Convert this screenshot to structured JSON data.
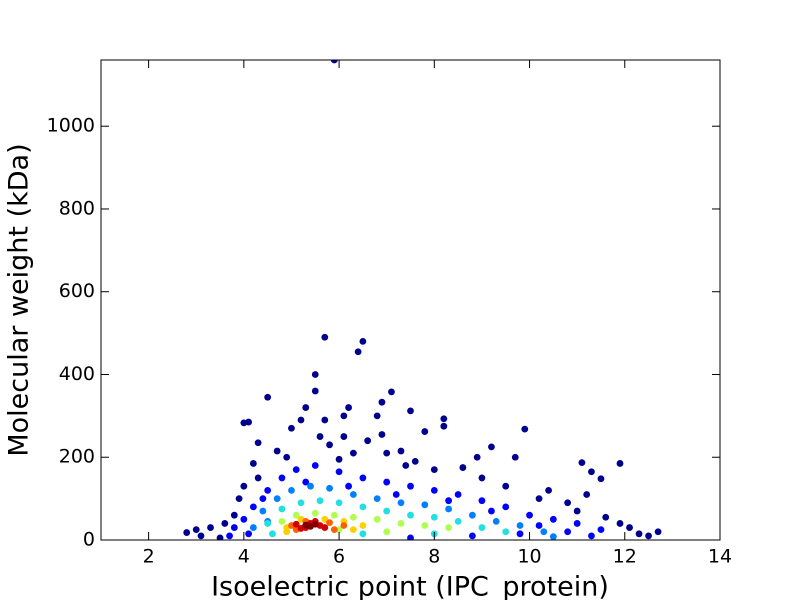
{
  "chart_data": {
    "type": "scatter",
    "xlabel": "Isoelectric point (IPC_protein)",
    "ylabel": "Molecular weight (kDa)",
    "xlim": [
      1,
      14
    ],
    "ylim": [
      0,
      1160
    ],
    "xticks": [
      2,
      4,
      6,
      8,
      10,
      12,
      14
    ],
    "yticks": [
      0,
      200,
      400,
      600,
      800,
      1000
    ],
    "grid": false,
    "series": [
      {
        "color": "#00008f",
        "x": [
          5.9,
          5.7,
          6.5,
          6.4,
          5.5,
          5.5,
          4.5,
          7.1,
          6.9,
          7.5,
          5.3,
          6.2,
          6.1,
          6.8,
          4.1,
          4.0,
          5.2,
          5.7,
          8.2,
          8.2,
          7.8,
          9.9,
          6.9,
          5.0,
          5.6,
          6.1,
          6.6,
          4.3,
          9.2,
          7.3,
          8.9,
          9.7,
          11.1,
          11.9,
          11.3,
          11.5,
          4.2,
          6.3,
          7.0,
          7.6,
          8.6,
          10.4,
          11.2,
          12.7,
          12.5,
          12.1,
          11.9,
          2.8,
          3.0,
          3.1,
          3.3,
          3.5,
          3.6,
          3.8,
          10.2,
          10.8,
          9.5,
          9.0,
          8.0,
          5.8,
          4.7,
          4.9,
          6.0,
          7.4,
          3.9,
          4.0,
          4.3,
          12.3,
          11.6,
          11.0
        ],
        "y": [
          1160,
          490,
          480,
          455,
          400,
          360,
          345,
          358,
          333,
          312,
          320,
          320,
          300,
          300,
          285,
          283,
          290,
          290,
          293,
          275,
          262,
          268,
          255,
          270,
          250,
          250,
          240,
          235,
          225,
          215,
          200,
          200,
          187,
          185,
          165,
          148,
          185,
          210,
          210,
          190,
          175,
          120,
          110,
          20,
          10,
          30,
          40,
          18,
          25,
          10,
          30,
          5,
          40,
          60,
          100,
          90,
          130,
          150,
          170,
          230,
          215,
          200,
          195,
          180,
          100,
          130,
          150,
          15,
          55,
          70
        ]
      },
      {
        "color": "#0000ff",
        "x": [
          4.2,
          4.5,
          4.8,
          5.1,
          5.5,
          6.0,
          6.5,
          7.0,
          7.5,
          8.0,
          8.5,
          9.0,
          9.5,
          10.0,
          10.5,
          11.0,
          11.5,
          3.8,
          4.0,
          4.4,
          5.3,
          6.2,
          7.2,
          8.3,
          9.2,
          10.2,
          10.8,
          11.3,
          3.7,
          9.8,
          8.8,
          7.5,
          4.1
        ],
        "y": [
          80,
          120,
          150,
          170,
          180,
          165,
          150,
          140,
          130,
          120,
          110,
          95,
          80,
          60,
          50,
          40,
          25,
          30,
          50,
          100,
          140,
          130,
          110,
          95,
          70,
          35,
          20,
          10,
          10,
          15,
          10,
          5,
          15
        ]
      },
      {
        "color": "#0080ff",
        "x": [
          4.4,
          4.7,
          5.0,
          5.4,
          5.8,
          6.3,
          6.8,
          7.3,
          7.8,
          8.3,
          8.8,
          9.3,
          9.8,
          10.3,
          4.2,
          4.5,
          10.5
        ],
        "y": [
          70,
          100,
          120,
          130,
          125,
          110,
          100,
          90,
          85,
          75,
          60,
          45,
          35,
          20,
          30,
          45,
          8
        ]
      },
      {
        "color": "#20e0e0",
        "x": [
          4.5,
          4.8,
          5.2,
          5.6,
          6.0,
          6.5,
          7.0,
          7.5,
          8.0,
          8.5,
          9.0,
          9.5,
          4.6,
          8.0,
          6.5
        ],
        "y": [
          40,
          75,
          90,
          95,
          90,
          80,
          70,
          60,
          55,
          45,
          30,
          20,
          15,
          15,
          15
        ]
      },
      {
        "color": "#b0ff50",
        "x": [
          4.8,
          5.1,
          5.5,
          5.9,
          6.3,
          6.8,
          7.3,
          7.8,
          8.3,
          6.0,
          7.0
        ],
        "y": [
          45,
          60,
          65,
          60,
          55,
          50,
          40,
          35,
          30,
          25,
          20
        ]
      },
      {
        "color": "#ffd000",
        "x": [
          4.9,
          5.2,
          5.7,
          6.1,
          6.5,
          4.9,
          6.3
        ],
        "y": [
          30,
          50,
          50,
          45,
          35,
          20,
          25
        ]
      },
      {
        "color": "#ff6000",
        "x": [
          5.0,
          5.3,
          5.8,
          6.1,
          5.1,
          5.9
        ],
        "y": [
          35,
          45,
          42,
          35,
          25,
          25
        ]
      },
      {
        "color": "#d00000",
        "x": [
          5.1,
          5.4,
          5.6,
          5.3,
          5.7,
          5.5,
          5.2
        ],
        "y": [
          38,
          40,
          35,
          30,
          30,
          45,
          28
        ]
      },
      {
        "color": "#800000",
        "x": [
          5.3,
          5.5,
          5.4
        ],
        "y": [
          36,
          38,
          33
        ]
      }
    ]
  }
}
